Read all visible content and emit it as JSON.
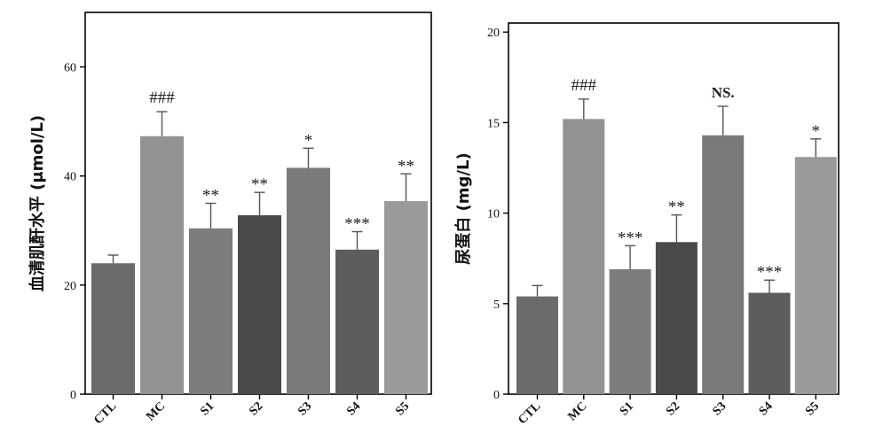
{
  "chart_data": [
    {
      "type": "bar",
      "title": "",
      "xlabel": "",
      "ylabel": "血清肌酐水平 (μmol/L)",
      "ylim": [
        0,
        70
      ],
      "yticks": [
        0,
        20,
        40,
        60
      ],
      "grid": false,
      "legend": "none",
      "categories": [
        "CTL",
        "MC",
        "S1",
        "S2",
        "S3",
        "S4",
        "S5"
      ],
      "values": [
        24,
        47.3,
        30.4,
        32.8,
        41.5,
        26.5,
        35.4
      ],
      "errors": [
        1.5,
        4.5,
        4.6,
        4.2,
        3.6,
        3.3,
        5.0
      ],
      "colors": [
        "#6b6b6b",
        "#929292",
        "#7d7d7d",
        "#4a4a4a",
        "#7a7a7a",
        "#5d5d5d",
        "#9a9a9a"
      ],
      "annotations": [
        "",
        "###",
        "**",
        "**",
        "*",
        "***",
        "**"
      ]
    },
    {
      "type": "bar",
      "title": "",
      "xlabel": "",
      "ylabel": "尿蛋白 (mg/L)",
      "ylim": [
        0,
        20.5
      ],
      "yticks": [
        0,
        5,
        10,
        15,
        20
      ],
      "grid": false,
      "legend": "none",
      "categories": [
        "CTL",
        "MC",
        "S1",
        "S2",
        "S3",
        "S4",
        "S5"
      ],
      "values": [
        5.4,
        15.2,
        6.9,
        8.4,
        14.3,
        5.6,
        13.1
      ],
      "errors": [
        0.6,
        1.1,
        1.3,
        1.5,
        1.6,
        0.7,
        1.0
      ],
      "colors": [
        "#6b6b6b",
        "#929292",
        "#7d7d7d",
        "#4a4a4a",
        "#7a7a7a",
        "#5d5d5d",
        "#9a9a9a"
      ],
      "annotations": [
        "",
        "###",
        "***",
        "**",
        "NS.",
        "***",
        "*"
      ]
    }
  ]
}
